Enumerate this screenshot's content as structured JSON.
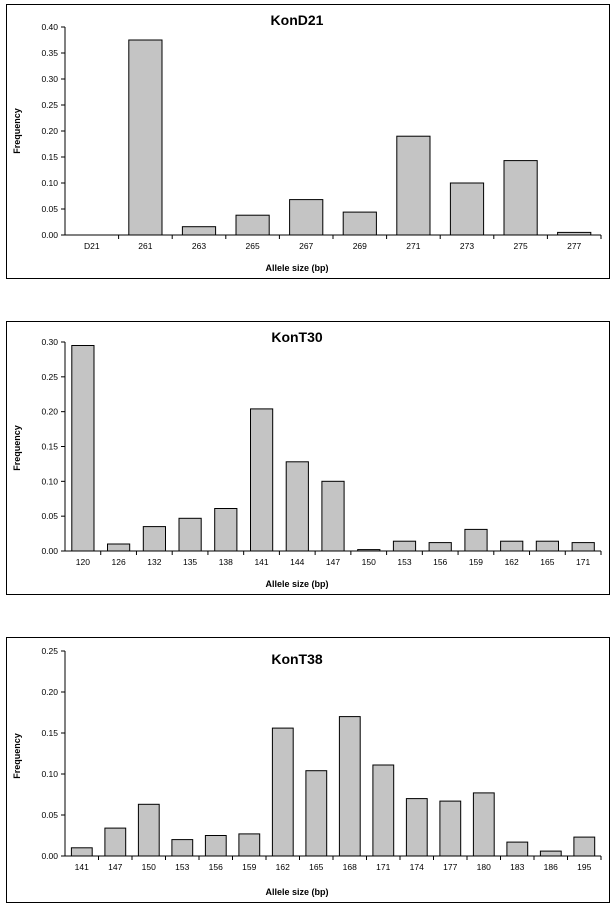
{
  "chart_data": [
    {
      "type": "bar",
      "title": "KonD21",
      "xlabel": "Allele size (bp)",
      "ylabel": "Frequency",
      "ylim": [
        0,
        0.4
      ],
      "yticks": [
        "0.00",
        "0.05",
        "0.10",
        "0.15",
        "0.20",
        "0.25",
        "0.30",
        "0.35",
        "0.40"
      ],
      "categories": [
        "D21",
        "261",
        "263",
        "265",
        "267",
        "269",
        "271",
        "273",
        "275",
        "277"
      ],
      "values": [
        0,
        0.375,
        0.016,
        0.038,
        0.068,
        0.044,
        0.19,
        0.1,
        0.143,
        0.005
      ],
      "grid": false,
      "bar_color": "#c4c4c4"
    },
    {
      "type": "bar",
      "title": "KonT30",
      "xlabel": "Allele size (bp)",
      "ylabel": "Frequency",
      "ylim": [
        0,
        0.3
      ],
      "yticks": [
        "0.00",
        "0.05",
        "0.10",
        "0.15",
        "0.20",
        "0.25",
        "0.30"
      ],
      "categories": [
        "120",
        "126",
        "132",
        "135",
        "138",
        "141",
        "144",
        "147",
        "150",
        "153",
        "156",
        "159",
        "162",
        "165",
        "171"
      ],
      "values": [
        0.295,
        0.01,
        0.035,
        0.047,
        0.061,
        0.204,
        0.128,
        0.1,
        0.002,
        0.014,
        0.012,
        0.031,
        0.014,
        0.014,
        0.012
      ],
      "grid": false,
      "bar_color": "#c4c4c4"
    },
    {
      "type": "bar",
      "title": "KonT38",
      "xlabel": "Allele size (bp)",
      "ylabel": "Frequency",
      "ylim": [
        0,
        0.25
      ],
      "yticks": [
        "0.00",
        "0.05",
        "0.10",
        "0.15",
        "0.20",
        "0.25"
      ],
      "categories": [
        "141",
        "147",
        "150",
        "153",
        "156",
        "159",
        "162",
        "165",
        "168",
        "171",
        "174",
        "177",
        "180",
        "183",
        "186",
        "195"
      ],
      "values": [
        0.01,
        0.034,
        0.063,
        0.02,
        0.025,
        0.027,
        0.156,
        0.104,
        0.17,
        0.111,
        0.07,
        0.067,
        0.077,
        0.017,
        0.006,
        0.023
      ],
      "grid": false,
      "bar_color": "#c4c4c4"
    }
  ]
}
